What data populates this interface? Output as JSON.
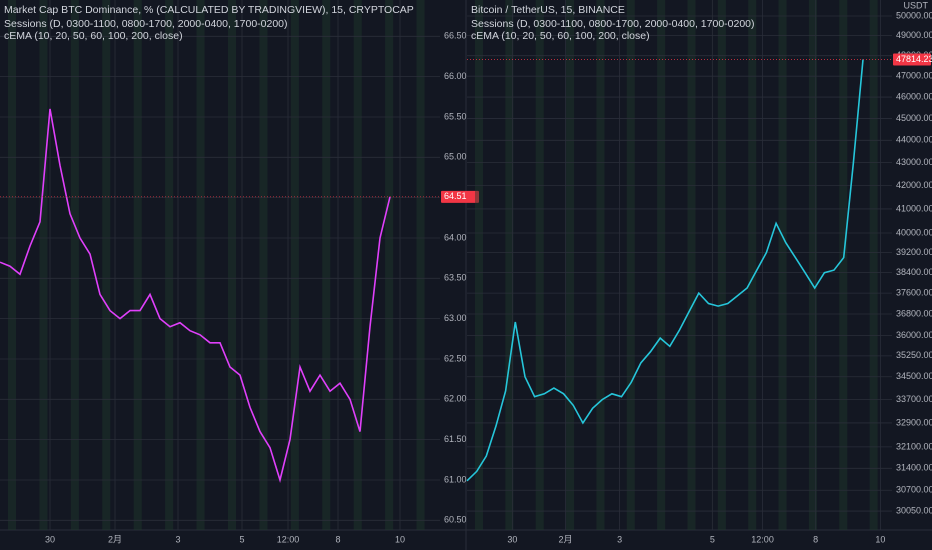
{
  "chart_data": [
    {
      "type": "line",
      "title": "Market Cap BTC Dominance, % (CALCULATED BY TRADINGVIEW), 15, CRYPTOCAP",
      "indicators": [
        "Sessions (D, 0300-1100, 0800-1700, 2000-0400, 1700-0200)",
        "cEMA (10, 20, 50, 60, 100, 200, close)"
      ],
      "x": [
        0,
        1,
        2,
        3,
        4,
        5,
        6,
        7,
        8,
        9,
        10,
        11,
        12,
        13,
        14,
        15,
        16,
        17,
        18,
        19,
        20,
        21,
        22,
        23,
        24,
        25,
        26,
        27,
        28,
        29,
        30,
        31,
        32,
        33,
        34,
        35,
        36,
        37,
        38,
        39
      ],
      "values": [
        63.7,
        63.65,
        63.55,
        63.9,
        64.2,
        65.6,
        64.9,
        64.3,
        64.0,
        63.8,
        63.3,
        63.1,
        63.0,
        63.1,
        63.1,
        63.3,
        63.0,
        62.9,
        62.95,
        62.85,
        62.8,
        62.7,
        62.7,
        62.4,
        62.3,
        61.9,
        61.6,
        61.4,
        61.0,
        61.5,
        62.4,
        62.1,
        62.3,
        62.1,
        62.2,
        62.0,
        61.6,
        62.9,
        64.0,
        64.51
      ],
      "color": "#e040fb",
      "xlim": [
        0,
        44
      ],
      "ylim": [
        60.38,
        66.95
      ],
      "xticks": [
        {
          "value": 5,
          "label": "30"
        },
        {
          "value": 11.5,
          "label": "2月"
        },
        {
          "value": 17.8,
          "label": "3"
        },
        {
          "value": 24.2,
          "label": "5"
        },
        {
          "value": 28.8,
          "label": "12:00"
        },
        {
          "value": 33.8,
          "label": "8"
        },
        {
          "value": 40,
          "label": "10"
        }
      ],
      "yticks": [
        {
          "value": 60.5,
          "label": "60.50"
        },
        {
          "value": 61,
          "label": "61.00"
        },
        {
          "value": 61.5,
          "label": "61.50"
        },
        {
          "value": 62,
          "label": "62.00"
        },
        {
          "value": 62.5,
          "label": "62.50"
        },
        {
          "value": 63,
          "label": "63.00"
        },
        {
          "value": 63.5,
          "label": "63.50"
        },
        {
          "value": 64,
          "label": "64.00"
        },
        {
          "value": 64.5,
          "label": "64.50"
        },
        {
          "value": 65,
          "label": "65.00"
        },
        {
          "value": 65.5,
          "label": "65.50"
        },
        {
          "value": 66,
          "label": "66.00"
        },
        {
          "value": 66.5,
          "label": "66.50"
        }
      ],
      "last_price": 64.51,
      "grid": true
    },
    {
      "type": "line",
      "title": "Bitcoin / TetherUS, 15, BINANCE",
      "indicators": [
        "Sessions (D, 0300-1100, 0800-1700, 2000-0400, 1700-0200)",
        "cEMA (10, 20, 50, 60, 100, 200, close)"
      ],
      "x": [
        0,
        1,
        2,
        3,
        4,
        5,
        6,
        7,
        8,
        9,
        10,
        11,
        12,
        13,
        14,
        15,
        16,
        17,
        18,
        19,
        20,
        21,
        22,
        23,
        24,
        25,
        26,
        27,
        28,
        29,
        30,
        31,
        32,
        33,
        34,
        35,
        36,
        37,
        38,
        39,
        40,
        41
      ],
      "values": [
        31000,
        31300,
        31800,
        32800,
        34000,
        36500,
        34500,
        33800,
        33900,
        34100,
        33900,
        33500,
        32900,
        33400,
        33700,
        33900,
        33800,
        34300,
        35000,
        35400,
        35900,
        35600,
        36200,
        36900,
        37600,
        37200,
        37100,
        37200,
        37500,
        37800,
        38500,
        39200,
        40400,
        39600,
        39000,
        38400,
        37800,
        38400,
        38500,
        39000,
        43000,
        47814.23
      ],
      "color": "#26c6da",
      "xlim": [
        0,
        44
      ],
      "ylim": [
        29470,
        50830
      ],
      "log_scale": true,
      "unit_label": "USDT",
      "xticks": [
        {
          "value": 4.7,
          "label": "30"
        },
        {
          "value": 10.2,
          "label": "2月"
        },
        {
          "value": 15.8,
          "label": "3"
        },
        {
          "value": 25.4,
          "label": "5"
        },
        {
          "value": 30.6,
          "label": "12:00"
        },
        {
          "value": 36.1,
          "label": "8"
        },
        {
          "value": 42.8,
          "label": "10"
        }
      ],
      "yticks": [
        {
          "value": 30050,
          "label": "30050.00"
        },
        {
          "value": 30700,
          "label": "30700.00"
        },
        {
          "value": 31400,
          "label": "31400.00"
        },
        {
          "value": 32100,
          "label": "32100.00"
        },
        {
          "value": 32900,
          "label": "32900.00"
        },
        {
          "value": 33700,
          "label": "33700.00"
        },
        {
          "value": 34500,
          "label": "34500.00"
        },
        {
          "value": 35250,
          "label": "35250.00"
        },
        {
          "value": 36000,
          "label": "36000.00"
        },
        {
          "value": 36800,
          "label": "36800.00"
        },
        {
          "value": 37600,
          "label": "37600.00"
        },
        {
          "value": 38400,
          "label": "38400.00"
        },
        {
          "value": 39200,
          "label": "39200.00"
        },
        {
          "value": 40000,
          "label": "40000.00"
        },
        {
          "value": 41000,
          "label": "41000.00"
        },
        {
          "value": 42000,
          "label": "42000.00"
        },
        {
          "value": 43000,
          "label": "43000.00"
        },
        {
          "value": 44000,
          "label": "44000.00"
        },
        {
          "value": 45000,
          "label": "45000.00"
        },
        {
          "value": 46000,
          "label": "46000.00"
        },
        {
          "value": 47000,
          "label": "47000.00"
        },
        {
          "value": 48000,
          "label": "48000.00"
        },
        {
          "value": 49000,
          "label": "49000.00"
        },
        {
          "value": 50000,
          "label": "50000.00"
        }
      ],
      "last_price": 47814.23,
      "grid": true
    }
  ]
}
